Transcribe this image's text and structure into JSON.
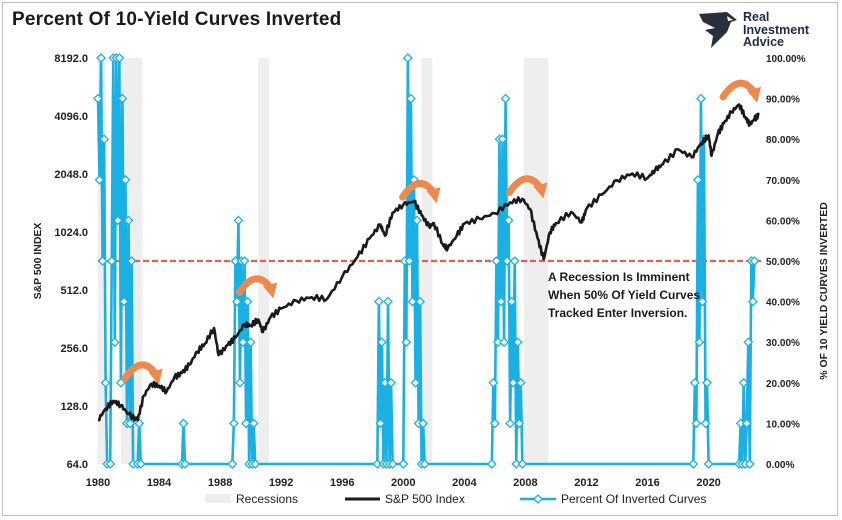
{
  "title": "Percent Of 10-Yield Curves Inverted",
  "logo": {
    "line1": "Real",
    "line2": "Investment",
    "line3": "Advice"
  },
  "colors": {
    "sp500": "#1a1a1a",
    "inverted": "#1ab0e4",
    "recession": "#eeeeee",
    "threshold": "#e0624a",
    "arrow": "#ec8a4e"
  },
  "annotation": [
    "A Recession Is Imminent",
    "When 50% Of Yield Curves",
    "Tracked Enter Inversion."
  ],
  "chart_data": {
    "type": "line",
    "x_range": [
      1980,
      2023.5
    ],
    "x_ticks": [
      1980,
      1984,
      1988,
      1992,
      1996,
      2000,
      2004,
      2008,
      2012,
      2016,
      2020
    ],
    "left_axis": {
      "label": "S&P 500 INDEX",
      "scale": "log2",
      "ticks": [
        "64.0",
        "128.0",
        "256.0",
        "512.0",
        "1024.0",
        "2048.0",
        "4096.0",
        "8192.0"
      ],
      "range": [
        64,
        8192
      ]
    },
    "right_axis": {
      "label": "% OF 10 YIELD CURVES INVERTED",
      "ticks": [
        "0.00%",
        "10.00%",
        "20.00%",
        "30.00%",
        "40.00%",
        "50.00%",
        "60.00%",
        "70.00%",
        "80.00%",
        "90.00%",
        "100.00%"
      ],
      "range": [
        0,
        100
      ]
    },
    "recessions": [
      [
        1980.0,
        1980.5
      ],
      [
        1981.5,
        1982.9
      ],
      [
        1990.5,
        1991.2
      ],
      [
        2001.2,
        2001.9
      ],
      [
        2007.9,
        2009.5
      ]
    ],
    "threshold_pct": 50,
    "series": [
      {
        "name": "S&P 500 Index",
        "axis": "left",
        "points": [
          [
            1980.0,
            108
          ],
          [
            1980.5,
            124
          ],
          [
            1981.0,
            136
          ],
          [
            1981.5,
            129
          ],
          [
            1982.0,
            116
          ],
          [
            1982.6,
            108
          ],
          [
            1983.0,
            145
          ],
          [
            1983.5,
            167
          ],
          [
            1984.0,
            163
          ],
          [
            1984.5,
            152
          ],
          [
            1985.0,
            180
          ],
          [
            1985.5,
            190
          ],
          [
            1986.0,
            210
          ],
          [
            1986.5,
            245
          ],
          [
            1987.0,
            270
          ],
          [
            1987.6,
            325
          ],
          [
            1987.9,
            235
          ],
          [
            1988.5,
            265
          ],
          [
            1989.0,
            290
          ],
          [
            1989.6,
            340
          ],
          [
            1990.0,
            335
          ],
          [
            1990.5,
            360
          ],
          [
            1990.8,
            310
          ],
          [
            1991.3,
            370
          ],
          [
            1992.0,
            410
          ],
          [
            1993.0,
            450
          ],
          [
            1994.0,
            470
          ],
          [
            1995.0,
            460
          ],
          [
            1996.0,
            600
          ],
          [
            1997.0,
            760
          ],
          [
            1997.8,
            950
          ],
          [
            1998.5,
            1120
          ],
          [
            1998.8,
            980
          ],
          [
            1999.3,
            1290
          ],
          [
            2000.0,
            1420
          ],
          [
            2000.7,
            1480
          ],
          [
            2001.2,
            1250
          ],
          [
            2001.7,
            1090
          ],
          [
            2002.0,
            1140
          ],
          [
            2002.6,
            880
          ],
          [
            2002.9,
            840
          ],
          [
            2003.5,
            980
          ],
          [
            2004.0,
            1130
          ],
          [
            2005.0,
            1200
          ],
          [
            2006.0,
            1280
          ],
          [
            2007.0,
            1460
          ],
          [
            2007.8,
            1520
          ],
          [
            2008.3,
            1350
          ],
          [
            2008.8,
            950
          ],
          [
            2009.2,
            740
          ],
          [
            2009.6,
            1020
          ],
          [
            2010.0,
            1140
          ],
          [
            2011.0,
            1300
          ],
          [
            2011.7,
            1150
          ],
          [
            2012.0,
            1350
          ],
          [
            2013.0,
            1600
          ],
          [
            2014.0,
            1900
          ],
          [
            2015.0,
            2060
          ],
          [
            2016.0,
            1950
          ],
          [
            2016.5,
            2150
          ],
          [
            2017.0,
            2300
          ],
          [
            2018.0,
            2750
          ],
          [
            2018.9,
            2500
          ],
          [
            2019.5,
            2950
          ],
          [
            2020.0,
            3250
          ],
          [
            2020.2,
            2550
          ],
          [
            2020.6,
            3300
          ],
          [
            2021.0,
            3750
          ],
          [
            2021.5,
            4300
          ],
          [
            2022.0,
            4700
          ],
          [
            2022.4,
            4050
          ],
          [
            2022.7,
            3700
          ],
          [
            2023.0,
            3950
          ],
          [
            2023.3,
            4150
          ]
        ]
      },
      {
        "name": "Percent Of Inverted Curves",
        "axis": "right",
        "points": [
          [
            1980.0,
            90
          ],
          [
            1980.1,
            70
          ],
          [
            1980.2,
            100
          ],
          [
            1980.3,
            50
          ],
          [
            1980.4,
            80
          ],
          [
            1980.5,
            20
          ],
          [
            1980.6,
            0
          ],
          [
            1980.8,
            0
          ],
          [
            1980.9,
            50
          ],
          [
            1981.0,
            100
          ],
          [
            1981.1,
            30
          ],
          [
            1981.2,
            100
          ],
          [
            1981.3,
            60
          ],
          [
            1981.4,
            100
          ],
          [
            1981.5,
            20
          ],
          [
            1981.6,
            90
          ],
          [
            1981.7,
            40
          ],
          [
            1981.8,
            70
          ],
          [
            1981.9,
            10
          ],
          [
            1982.0,
            60
          ],
          [
            1982.1,
            10
          ],
          [
            1982.2,
            50
          ],
          [
            1982.3,
            0
          ],
          [
            1982.6,
            0
          ],
          [
            1982.7,
            10
          ],
          [
            1982.8,
            0
          ],
          [
            1985.5,
            0
          ],
          [
            1985.6,
            10
          ],
          [
            1985.7,
            0
          ],
          [
            1988.8,
            0
          ],
          [
            1988.9,
            10
          ],
          [
            1989.0,
            50
          ],
          [
            1989.1,
            40
          ],
          [
            1989.2,
            60
          ],
          [
            1989.3,
            20
          ],
          [
            1989.4,
            50
          ],
          [
            1989.5,
            30
          ],
          [
            1989.6,
            50
          ],
          [
            1989.7,
            10
          ],
          [
            1989.8,
            40
          ],
          [
            1989.9,
            0
          ],
          [
            1990.0,
            30
          ],
          [
            1990.1,
            0
          ],
          [
            1990.2,
            10
          ],
          [
            1990.3,
            0
          ],
          [
            1998.3,
            0
          ],
          [
            1998.4,
            40
          ],
          [
            1998.5,
            10
          ],
          [
            1998.6,
            30
          ],
          [
            1998.7,
            0
          ],
          [
            1998.8,
            20
          ],
          [
            1998.9,
            0
          ],
          [
            1999.0,
            40
          ],
          [
            1999.1,
            0
          ],
          [
            1999.2,
            20
          ],
          [
            1999.3,
            0
          ],
          [
            2000.0,
            0
          ],
          [
            2000.1,
            50
          ],
          [
            2000.2,
            30
          ],
          [
            2000.3,
            100
          ],
          [
            2000.4,
            50
          ],
          [
            2000.5,
            90
          ],
          [
            2000.6,
            40
          ],
          [
            2000.7,
            70
          ],
          [
            2000.8,
            20
          ],
          [
            2000.9,
            60
          ],
          [
            2001.0,
            10
          ],
          [
            2001.1,
            40
          ],
          [
            2001.2,
            0
          ],
          [
            2001.3,
            10
          ],
          [
            2001.4,
            0
          ],
          [
            2005.8,
            0
          ],
          [
            2005.9,
            20
          ],
          [
            2006.0,
            10
          ],
          [
            2006.1,
            50
          ],
          [
            2006.2,
            30
          ],
          [
            2006.3,
            80
          ],
          [
            2006.4,
            40
          ],
          [
            2006.5,
            80
          ],
          [
            2006.6,
            30
          ],
          [
            2006.7,
            90
          ],
          [
            2006.8,
            50
          ],
          [
            2006.9,
            60
          ],
          [
            2007.0,
            10
          ],
          [
            2007.1,
            40
          ],
          [
            2007.2,
            20
          ],
          [
            2007.3,
            50
          ],
          [
            2007.4,
            0
          ],
          [
            2007.5,
            30
          ],
          [
            2007.6,
            10
          ],
          [
            2007.7,
            20
          ],
          [
            2007.8,
            0
          ],
          [
            2019.0,
            0
          ],
          [
            2019.1,
            20
          ],
          [
            2019.2,
            10
          ],
          [
            2019.3,
            70
          ],
          [
            2019.4,
            30
          ],
          [
            2019.5,
            90
          ],
          [
            2019.6,
            40
          ],
          [
            2019.7,
            80
          ],
          [
            2019.8,
            10
          ],
          [
            2019.9,
            20
          ],
          [
            2020.0,
            0
          ],
          [
            2022.0,
            0
          ],
          [
            2022.1,
            10
          ],
          [
            2022.2,
            0
          ],
          [
            2022.3,
            20
          ],
          [
            2022.4,
            0
          ],
          [
            2022.5,
            10
          ],
          [
            2022.6,
            30
          ],
          [
            2022.7,
            0
          ],
          [
            2022.8,
            50
          ],
          [
            2022.9,
            40
          ],
          [
            2023.0,
            50
          ]
        ]
      }
    ],
    "legend": [
      "Recessions",
      "S&P 500 Index",
      "Percent Of Inverted Curves"
    ],
    "legend_position": "bottom"
  }
}
